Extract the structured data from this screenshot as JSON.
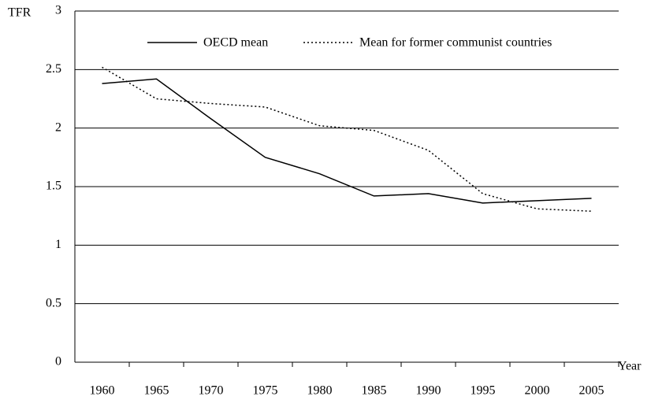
{
  "chart_data": {
    "type": "line",
    "y_label": "TFR",
    "x_label": "Year",
    "categories": [
      "1960",
      "1965",
      "1970",
      "1975",
      "1980",
      "1985",
      "1990",
      "1995",
      "2000",
      "2005"
    ],
    "series": [
      {
        "name": "OECD mean",
        "color": "#000000",
        "style": "solid",
        "values": [
          2.38,
          2.42,
          2.08,
          1.75,
          1.61,
          1.42,
          1.44,
          1.36,
          1.38,
          1.4
        ]
      },
      {
        "name": "Mean for former communist countries",
        "color": "#000000",
        "style": "dotted",
        "values": [
          2.52,
          2.25,
          2.21,
          2.18,
          2.02,
          1.98,
          1.81,
          1.44,
          1.31,
          1.29
        ]
      }
    ],
    "ylim": [
      0,
      3
    ],
    "yticks": [
      0,
      0.5,
      1,
      1.5,
      2,
      2.5,
      3
    ],
    "grid": true
  }
}
